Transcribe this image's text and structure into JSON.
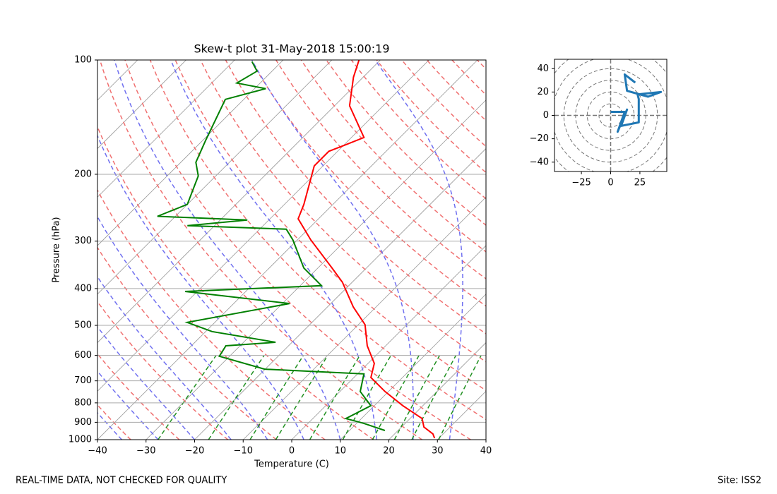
{
  "chart_data": [
    {
      "type": "skewt",
      "title": "Skew-t plot 31-May-2018 15:00:19",
      "xlabel": "Temperature (C)",
      "ylabel": "Pressure (hPa)",
      "log_y": true,
      "grid": true,
      "xlim": [
        -40,
        40
      ],
      "ylim": [
        1000,
        100
      ],
      "xticks": [
        {
          "value": -40,
          "label": "−40"
        },
        {
          "value": -30,
          "label": "−30"
        },
        {
          "value": -20,
          "label": "−20"
        },
        {
          "value": -10,
          "label": "−10"
        },
        0,
        10,
        20,
        30,
        40
      ],
      "yticks": [
        100,
        200,
        300,
        400,
        500,
        600,
        700,
        800,
        900,
        1000
      ],
      "series": [
        {
          "color": "#ff0000",
          "x": [
            29.1,
            27.9,
            24.6,
            22.5,
            15.9,
            9.3,
            3.5,
            1.3,
            -3.8,
            -8.6,
            -14.7,
            -22.0,
            -27.1,
            -37.2,
            -44.2,
            -46.0,
            -49.2,
            -51.8,
            -51.8,
            -49.6,
            -47.4,
            -56.9,
            -62.0,
            -64.4
          ],
          "y": [
            991,
            966,
            926,
            880,
            814,
            747,
            686,
            630,
            566,
            498,
            447,
            385,
            353,
            298,
            262,
            240,
            211,
            190,
            174,
            167,
            160,
            132,
            111,
            100
          ]
        },
        {
          "color": "#008000",
          "x": [
            17.3,
            11.5,
            6.8,
            9.3,
            4.2,
            1.3,
            -20.1,
            -32.1,
            -32.9,
            -23.4,
            -38.7,
            -45.7,
            -28.5,
            -52.5,
            -25.6,
            -32.9,
            -40.9,
            -44.5,
            -65.6,
            -54.4,
            -73.7,
            -70.0,
            -73.6,
            -76.9,
            -79.4,
            -83.8,
            -77.7,
            -84.8,
            -83.1,
            -86.1
          ],
          "y": [
            946,
            906,
            880,
            814,
            747,
            671,
            652,
            603,
            566,
            554,
            519,
            491,
            438,
            407,
            393,
            353,
            298,
            279,
            273,
            264,
            258,
            240,
            202,
            186,
            163,
            127,
            119,
            115,
            107,
            101
          ]
        }
      ]
    },
    {
      "type": "hodograph",
      "xlim": [
        -48,
        48
      ],
      "ylim": [
        -48,
        48
      ],
      "xticks": [
        {
          "value": -25,
          "label": "−25"
        },
        0,
        25
      ],
      "yticks": [
        40,
        20,
        0,
        {
          "value": -20,
          "label": "−20"
        },
        {
          "value": -40,
          "label": "−40"
        }
      ],
      "series": [
        {
          "color": "#1f77b4",
          "x": [
            0,
            12,
            6,
            14,
            9,
            24,
            24,
            23,
            43,
            32,
            14,
            12,
            21
          ],
          "values": [
            3,
            3,
            -14,
            5,
            -9,
            -6,
            14,
            18,
            20,
            16,
            21,
            35,
            28
          ]
        }
      ]
    }
  ],
  "footer": {
    "left": "REAL-TIME DATA, NOT CHECKED FOR QUALITY",
    "right": "Site: ISS2"
  }
}
